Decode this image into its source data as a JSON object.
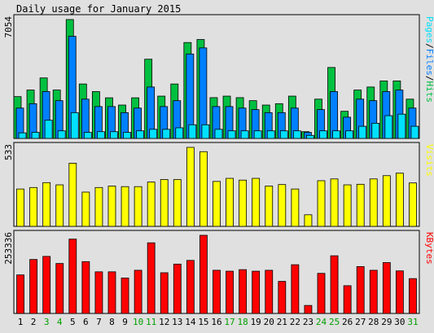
{
  "title": "Daily usage for January 2015",
  "chart_data": [
    {
      "type": "bar",
      "name": "hits-files-pages",
      "max_label": "7054",
      "legend": [
        "Pages",
        "/",
        "Files",
        "/",
        "Hits"
      ],
      "categories": [
        "1",
        "2",
        "3",
        "4",
        "5",
        "6",
        "7",
        "8",
        "9",
        "10",
        "11",
        "12",
        "13",
        "14",
        "15",
        "16",
        "17",
        "18",
        "19",
        "20",
        "21",
        "22",
        "23",
        "24",
        "25",
        "26",
        "27",
        "28",
        "29",
        "30",
        "31"
      ],
      "weekend_days": [
        "3",
        "4",
        "10",
        "11",
        "17",
        "18",
        "24",
        "25",
        "31"
      ],
      "series": [
        {
          "name": "Hits",
          "color": "#00c040",
          "values": [
            2480,
            2870,
            3590,
            2870,
            7054,
            3230,
            2780,
            2410,
            1980,
            2410,
            4700,
            2510,
            3230,
            5690,
            5870,
            2420,
            2510,
            2420,
            2240,
            1980,
            2060,
            2510,
            400,
            2330,
            4210,
            1610,
            2870,
            3050,
            3410,
            3410,
            2330
          ]
        },
        {
          "name": "Files",
          "color": "#0080ff",
          "values": [
            1800,
            2060,
            2780,
            2240,
            6060,
            2330,
            1890,
            1890,
            1530,
            1800,
            3050,
            1890,
            2240,
            5010,
            5370,
            1890,
            1890,
            1800,
            1710,
            1530,
            1530,
            1800,
            360,
            1710,
            2780,
            1260,
            2330,
            2240,
            2780,
            2870,
            1800
          ]
        },
        {
          "name": "Pages",
          "color": "#00e0ff",
          "values": [
            330,
            360,
            1080,
            450,
            1530,
            360,
            400,
            400,
            360,
            450,
            540,
            540,
            630,
            810,
            810,
            540,
            450,
            450,
            450,
            450,
            450,
            450,
            180,
            450,
            450,
            450,
            720,
            900,
            1350,
            1440,
            720
          ]
        }
      ]
    },
    {
      "type": "bar",
      "name": "visits",
      "max_label": "533",
      "legend": [
        "Visits"
      ],
      "categories": [
        "1",
        "2",
        "3",
        "4",
        "5",
        "6",
        "7",
        "8",
        "9",
        "10",
        "11",
        "12",
        "13",
        "14",
        "15",
        "16",
        "17",
        "18",
        "19",
        "20",
        "21",
        "22",
        "23",
        "24",
        "25",
        "26",
        "27",
        "28",
        "29",
        "30",
        "31"
      ],
      "series": [
        {
          "name": "Visits",
          "color": "#ffff00",
          "values": [
            252,
            262,
            295,
            280,
            426,
            231,
            262,
            272,
            268,
            268,
            299,
            316,
            316,
            533,
            504,
            303,
            324,
            312,
            324,
            272,
            282,
            252,
            78,
            308,
            320,
            280,
            284,
            320,
            342,
            359,
            293
          ]
        }
      ]
    },
    {
      "type": "bar",
      "name": "kbytes",
      "max_label": "253336",
      "legend": [
        "KBytes"
      ],
      "categories": [
        "1",
        "2",
        "3",
        "4",
        "5",
        "6",
        "7",
        "8",
        "9",
        "10",
        "11",
        "12",
        "13",
        "14",
        "15",
        "16",
        "17",
        "18",
        "19",
        "20",
        "21",
        "22",
        "23",
        "24",
        "25",
        "26",
        "27",
        "28",
        "29",
        "30",
        "31"
      ],
      "series": [
        {
          "name": "KBytes",
          "color": "#ff0000",
          "values": [
            125000,
            175000,
            185000,
            162000,
            241000,
            168000,
            135000,
            135000,
            115000,
            140000,
            229000,
            132000,
            160000,
            172000,
            253336,
            140000,
            137000,
            142000,
            137000,
            140000,
            104000,
            158000,
            26000,
            130000,
            187000,
            90000,
            152000,
            140000,
            165000,
            138000,
            113000
          ]
        }
      ]
    }
  ]
}
